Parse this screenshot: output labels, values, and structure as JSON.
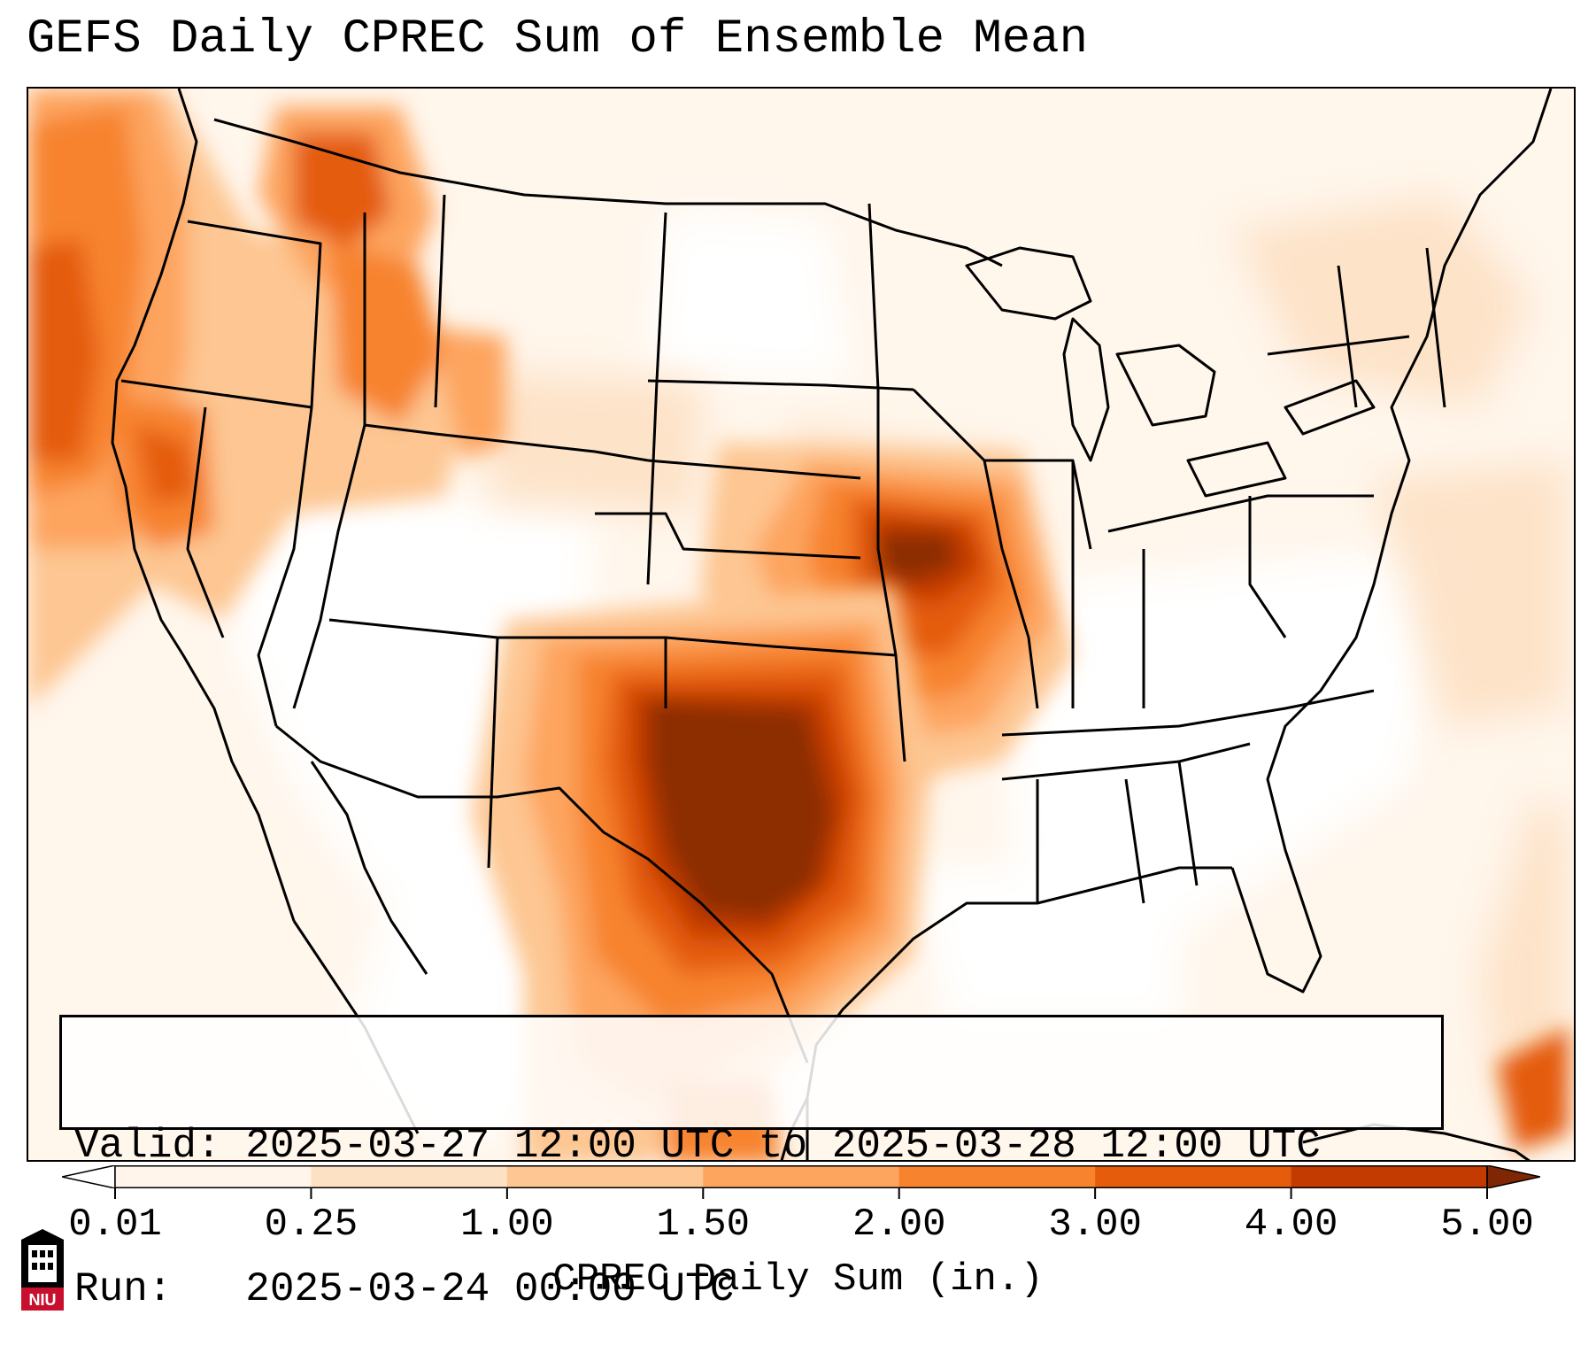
{
  "header": {
    "title": "GEFS Daily CPREC Sum of Ensemble Mean"
  },
  "info": {
    "valid_line": "Valid: 2025-03-27 12:00 UTC to 2025-03-28 12:00 UTC",
    "run_line": "Run:   2025-03-24 00:00 UTC"
  },
  "colorbar": {
    "label": "CPREC Daily Sum (in.)",
    "ticks": [
      "0.01",
      "0.25",
      "1.00",
      "1.50",
      "2.00",
      "3.00",
      "4.00",
      "5.00"
    ],
    "colors": [
      "#fff5eb",
      "#fde1c5",
      "#fdc692",
      "#fda45f",
      "#f7832f",
      "#e45c0c",
      "#c43b02",
      "#8c2d04"
    ],
    "under_color": "#ffffff",
    "over_color": "#7f2704"
  },
  "logo": {
    "text": "NIU",
    "color": "#c8102e"
  }
}
